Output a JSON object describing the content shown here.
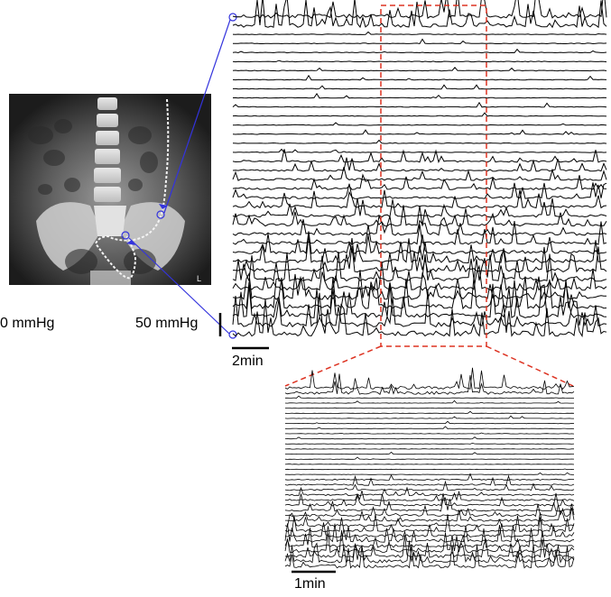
{
  "labels": {
    "left_pressure": "0 mmHg",
    "pressure_scale": "50 mmHg",
    "time_scale_main": "2min",
    "time_scale_zoom": "1min"
  },
  "panel_main": {
    "channel_count": 36,
    "zoom_window_fraction": [
      0.57,
      0.94
    ]
  },
  "panel_zoom": {
    "channel_count": 36
  },
  "colors": {
    "trace": "#000000",
    "catheter_marker": "#3333dd",
    "zoom_box": "#dd3322",
    "xray_background": "#1a1a1a"
  },
  "xray": {
    "corner_marker": "L"
  }
}
